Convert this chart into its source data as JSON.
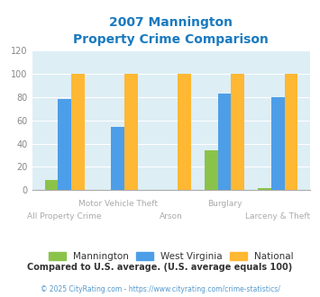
{
  "title_line1": "2007 Mannington",
  "title_line2": "Property Crime Comparison",
  "categories": [
    "All Property Crime",
    "Motor Vehicle Theft",
    "Arson",
    "Burglary",
    "Larceny & Theft"
  ],
  "mannington": [
    9,
    0,
    0,
    34,
    2
  ],
  "west_virginia": [
    78,
    54,
    0,
    83,
    80
  ],
  "national": [
    100,
    100,
    100,
    100,
    100
  ],
  "color_mannington": "#8bc34a",
  "color_wv": "#4d9ee8",
  "color_national": "#ffb833",
  "ylim": [
    0,
    120
  ],
  "yticks": [
    0,
    20,
    40,
    60,
    80,
    100,
    120
  ],
  "background_color": "#ffffff",
  "plot_bg": "#ddeef5",
  "title_color": "#1a7abf",
  "xlabel_color_top": "#aaaaaa",
  "xlabel_color_bottom": "#aaaaaa",
  "footer_text": "© 2025 CityRating.com - https://www.cityrating.com/crime-statistics/",
  "compare_text": "Compared to U.S. average. (U.S. average equals 100)",
  "legend_labels": [
    "Mannington",
    "West Virginia",
    "National"
  ],
  "legend_text_color": "#333333",
  "compare_text_color": "#333333",
  "footer_color": "#5599cc"
}
